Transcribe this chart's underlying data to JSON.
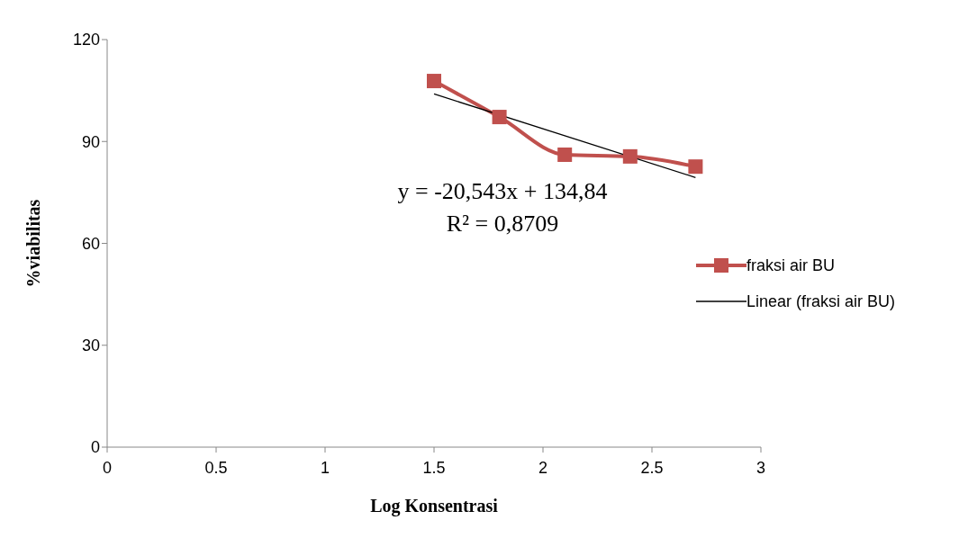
{
  "chart_data": {
    "type": "line",
    "xlabel": "Log Konsentrasi",
    "ylabel": "%viabilitas",
    "x": [
      1.5,
      1.8,
      2.1,
      2.4,
      2.7
    ],
    "series": [
      {
        "name": "fraksi air BU",
        "color": "#c0504d",
        "values": [
          107.8,
          97.2,
          86.1,
          85.6,
          82.6
        ],
        "marker": "square"
      },
      {
        "name": "Linear (fraksi air BU)",
        "type": "line",
        "color": "#000000",
        "x": [
          1.5,
          2.7
        ],
        "values": [
          104,
          79.4
        ],
        "marker": "none"
      }
    ],
    "xlim": [
      0,
      3
    ],
    "xticks": [
      0,
      0.5,
      1,
      1.5,
      2,
      2.5,
      3
    ],
    "ylim": [
      0,
      120
    ],
    "yticks": [
      0,
      30,
      60,
      90,
      120
    ],
    "legend": "right",
    "annotations": [
      "y = -20,543x + 134,84",
      "R² = 0,8709"
    ]
  }
}
